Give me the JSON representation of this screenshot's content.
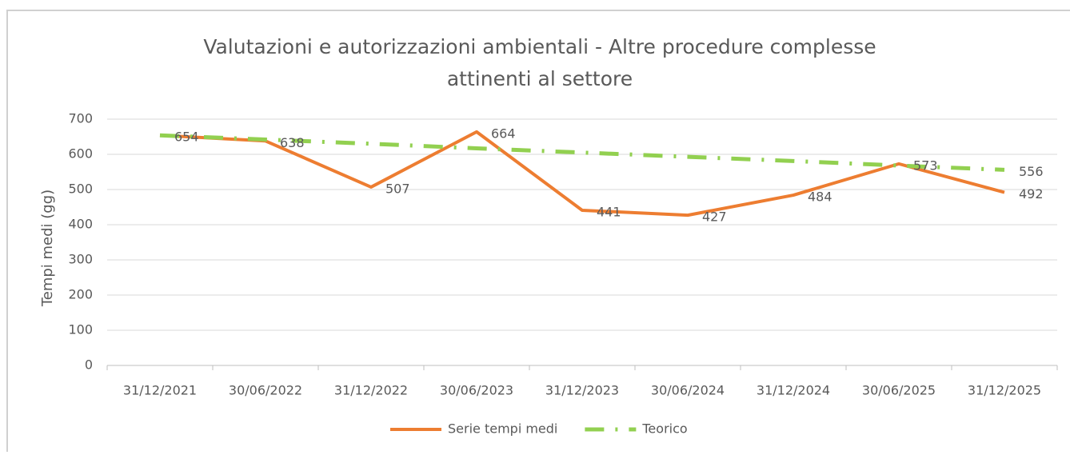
{
  "chart_data": {
    "type": "line",
    "title": [
      "Valutazioni e autorizzazioni ambientali - Altre procedure complesse",
      "attinenti al settore"
    ],
    "ylabel": "Tempi medi (gg)",
    "categories": [
      "31/12/2021",
      "30/06/2022",
      "31/12/2022",
      "30/06/2023",
      "31/12/2023",
      "30/06/2024",
      "31/12/2024",
      "30/06/2025",
      "31/12/2025"
    ],
    "series": [
      {
        "name": "Serie tempi medi",
        "color": "#ed7d31",
        "style": "solid",
        "data_labels": "all",
        "values": [
          654,
          638,
          507,
          664,
          441,
          427,
          484,
          573,
          492
        ]
      },
      {
        "name": "Teorico",
        "color": "#92d050",
        "style": "dash-dot",
        "data_labels": "last",
        "values": [
          654,
          642,
          630,
          617,
          605,
          593,
          581,
          568,
          556
        ]
      }
    ],
    "ylim": [
      0,
      700
    ],
    "yticks": [
      0,
      100,
      200,
      300,
      400,
      500,
      600,
      700
    ],
    "grid": true,
    "legend": "bottom"
  }
}
